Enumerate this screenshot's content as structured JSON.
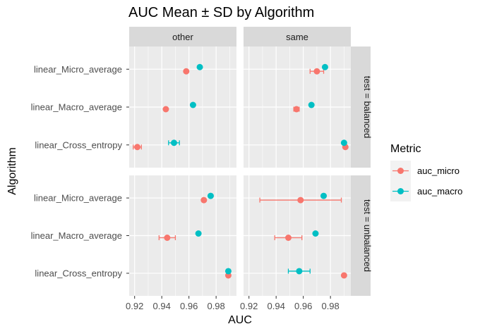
{
  "chart_data": {
    "type": "scatter",
    "title": "AUC Mean ± SD by Algorithm",
    "xlabel": "AUC",
    "ylabel": "Algorithm",
    "xlim": [
      0.916,
      0.995
    ],
    "x_ticks": [
      "0.92",
      "0.94",
      "0.96",
      "0.98"
    ],
    "x_tick_values": [
      0.92,
      0.94,
      0.96,
      0.98
    ],
    "categories": [
      "linear_Micro_average",
      "linear_Macro_average",
      "linear_Cross_entropy"
    ],
    "facet_columns": [
      "other",
      "same"
    ],
    "facet_rows": [
      "test = balanced",
      "test = unbalanced"
    ],
    "legend": {
      "title": "Metric",
      "position": "right",
      "items": [
        {
          "label": "auc_micro",
          "color": "#F8766D"
        },
        {
          "label": "auc_macro",
          "color": "#00BFC4"
        }
      ]
    },
    "grid": true,
    "panel_background": "#EBEBEB",
    "strip_background": "#D9D9D9",
    "panels": [
      {
        "column": "other",
        "row": "test = balanced",
        "series": [
          {
            "name": "auc_micro",
            "points": [
              {
                "category": "linear_Micro_average",
                "mean": 0.958,
                "sd": 0.0
              },
              {
                "category": "linear_Macro_average",
                "mean": 0.943,
                "sd": 0.0
              },
              {
                "category": "linear_Cross_entropy",
                "mean": 0.922,
                "sd": 0.003
              }
            ]
          },
          {
            "name": "auc_macro",
            "points": [
              {
                "category": "linear_Micro_average",
                "mean": 0.968,
                "sd": 0.0
              },
              {
                "category": "linear_Macro_average",
                "mean": 0.963,
                "sd": 0.0
              },
              {
                "category": "linear_Cross_entropy",
                "mean": 0.949,
                "sd": 0.004
              }
            ]
          }
        ]
      },
      {
        "column": "same",
        "row": "test = balanced",
        "series": [
          {
            "name": "auc_micro",
            "points": [
              {
                "category": "linear_Micro_average",
                "mean": 0.97,
                "sd": 0.005
              },
              {
                "category": "linear_Macro_average",
                "mean": 0.955,
                "sd": 0.002
              },
              {
                "category": "linear_Cross_entropy",
                "mean": 0.991,
                "sd": 0.0
              }
            ]
          },
          {
            "name": "auc_macro",
            "points": [
              {
                "category": "linear_Micro_average",
                "mean": 0.976,
                "sd": 0.0
              },
              {
                "category": "linear_Macro_average",
                "mean": 0.966,
                "sd": 0.0
              },
              {
                "category": "linear_Cross_entropy",
                "mean": 0.99,
                "sd": 0.0
              }
            ]
          }
        ]
      },
      {
        "column": "other",
        "row": "test = unbalanced",
        "series": [
          {
            "name": "auc_micro",
            "points": [
              {
                "category": "linear_Micro_average",
                "mean": 0.971,
                "sd": 0.001
              },
              {
                "category": "linear_Macro_average",
                "mean": 0.944,
                "sd": 0.006
              },
              {
                "category": "linear_Cross_entropy",
                "mean": 0.989,
                "sd": 0.0
              }
            ]
          },
          {
            "name": "auc_macro",
            "points": [
              {
                "category": "linear_Micro_average",
                "mean": 0.976,
                "sd": 0.0
              },
              {
                "category": "linear_Macro_average",
                "mean": 0.967,
                "sd": 0.0
              },
              {
                "category": "linear_Cross_entropy",
                "mean": 0.989,
                "sd": 0.0
              }
            ]
          }
        ]
      },
      {
        "column": "same",
        "row": "test = unbalanced",
        "series": [
          {
            "name": "auc_micro",
            "points": [
              {
                "category": "linear_Micro_average",
                "mean": 0.958,
                "sd": 0.03
              },
              {
                "category": "linear_Macro_average",
                "mean": 0.949,
                "sd": 0.01
              },
              {
                "category": "linear_Cross_entropy",
                "mean": 0.99,
                "sd": 0.0
              }
            ]
          },
          {
            "name": "auc_macro",
            "points": [
              {
                "category": "linear_Micro_average",
                "mean": 0.975,
                "sd": 0.0
              },
              {
                "category": "linear_Macro_average",
                "mean": 0.969,
                "sd": 0.0
              },
              {
                "category": "linear_Cross_entropy",
                "mean": 0.957,
                "sd": 0.008
              }
            ]
          }
        ]
      }
    ]
  }
}
